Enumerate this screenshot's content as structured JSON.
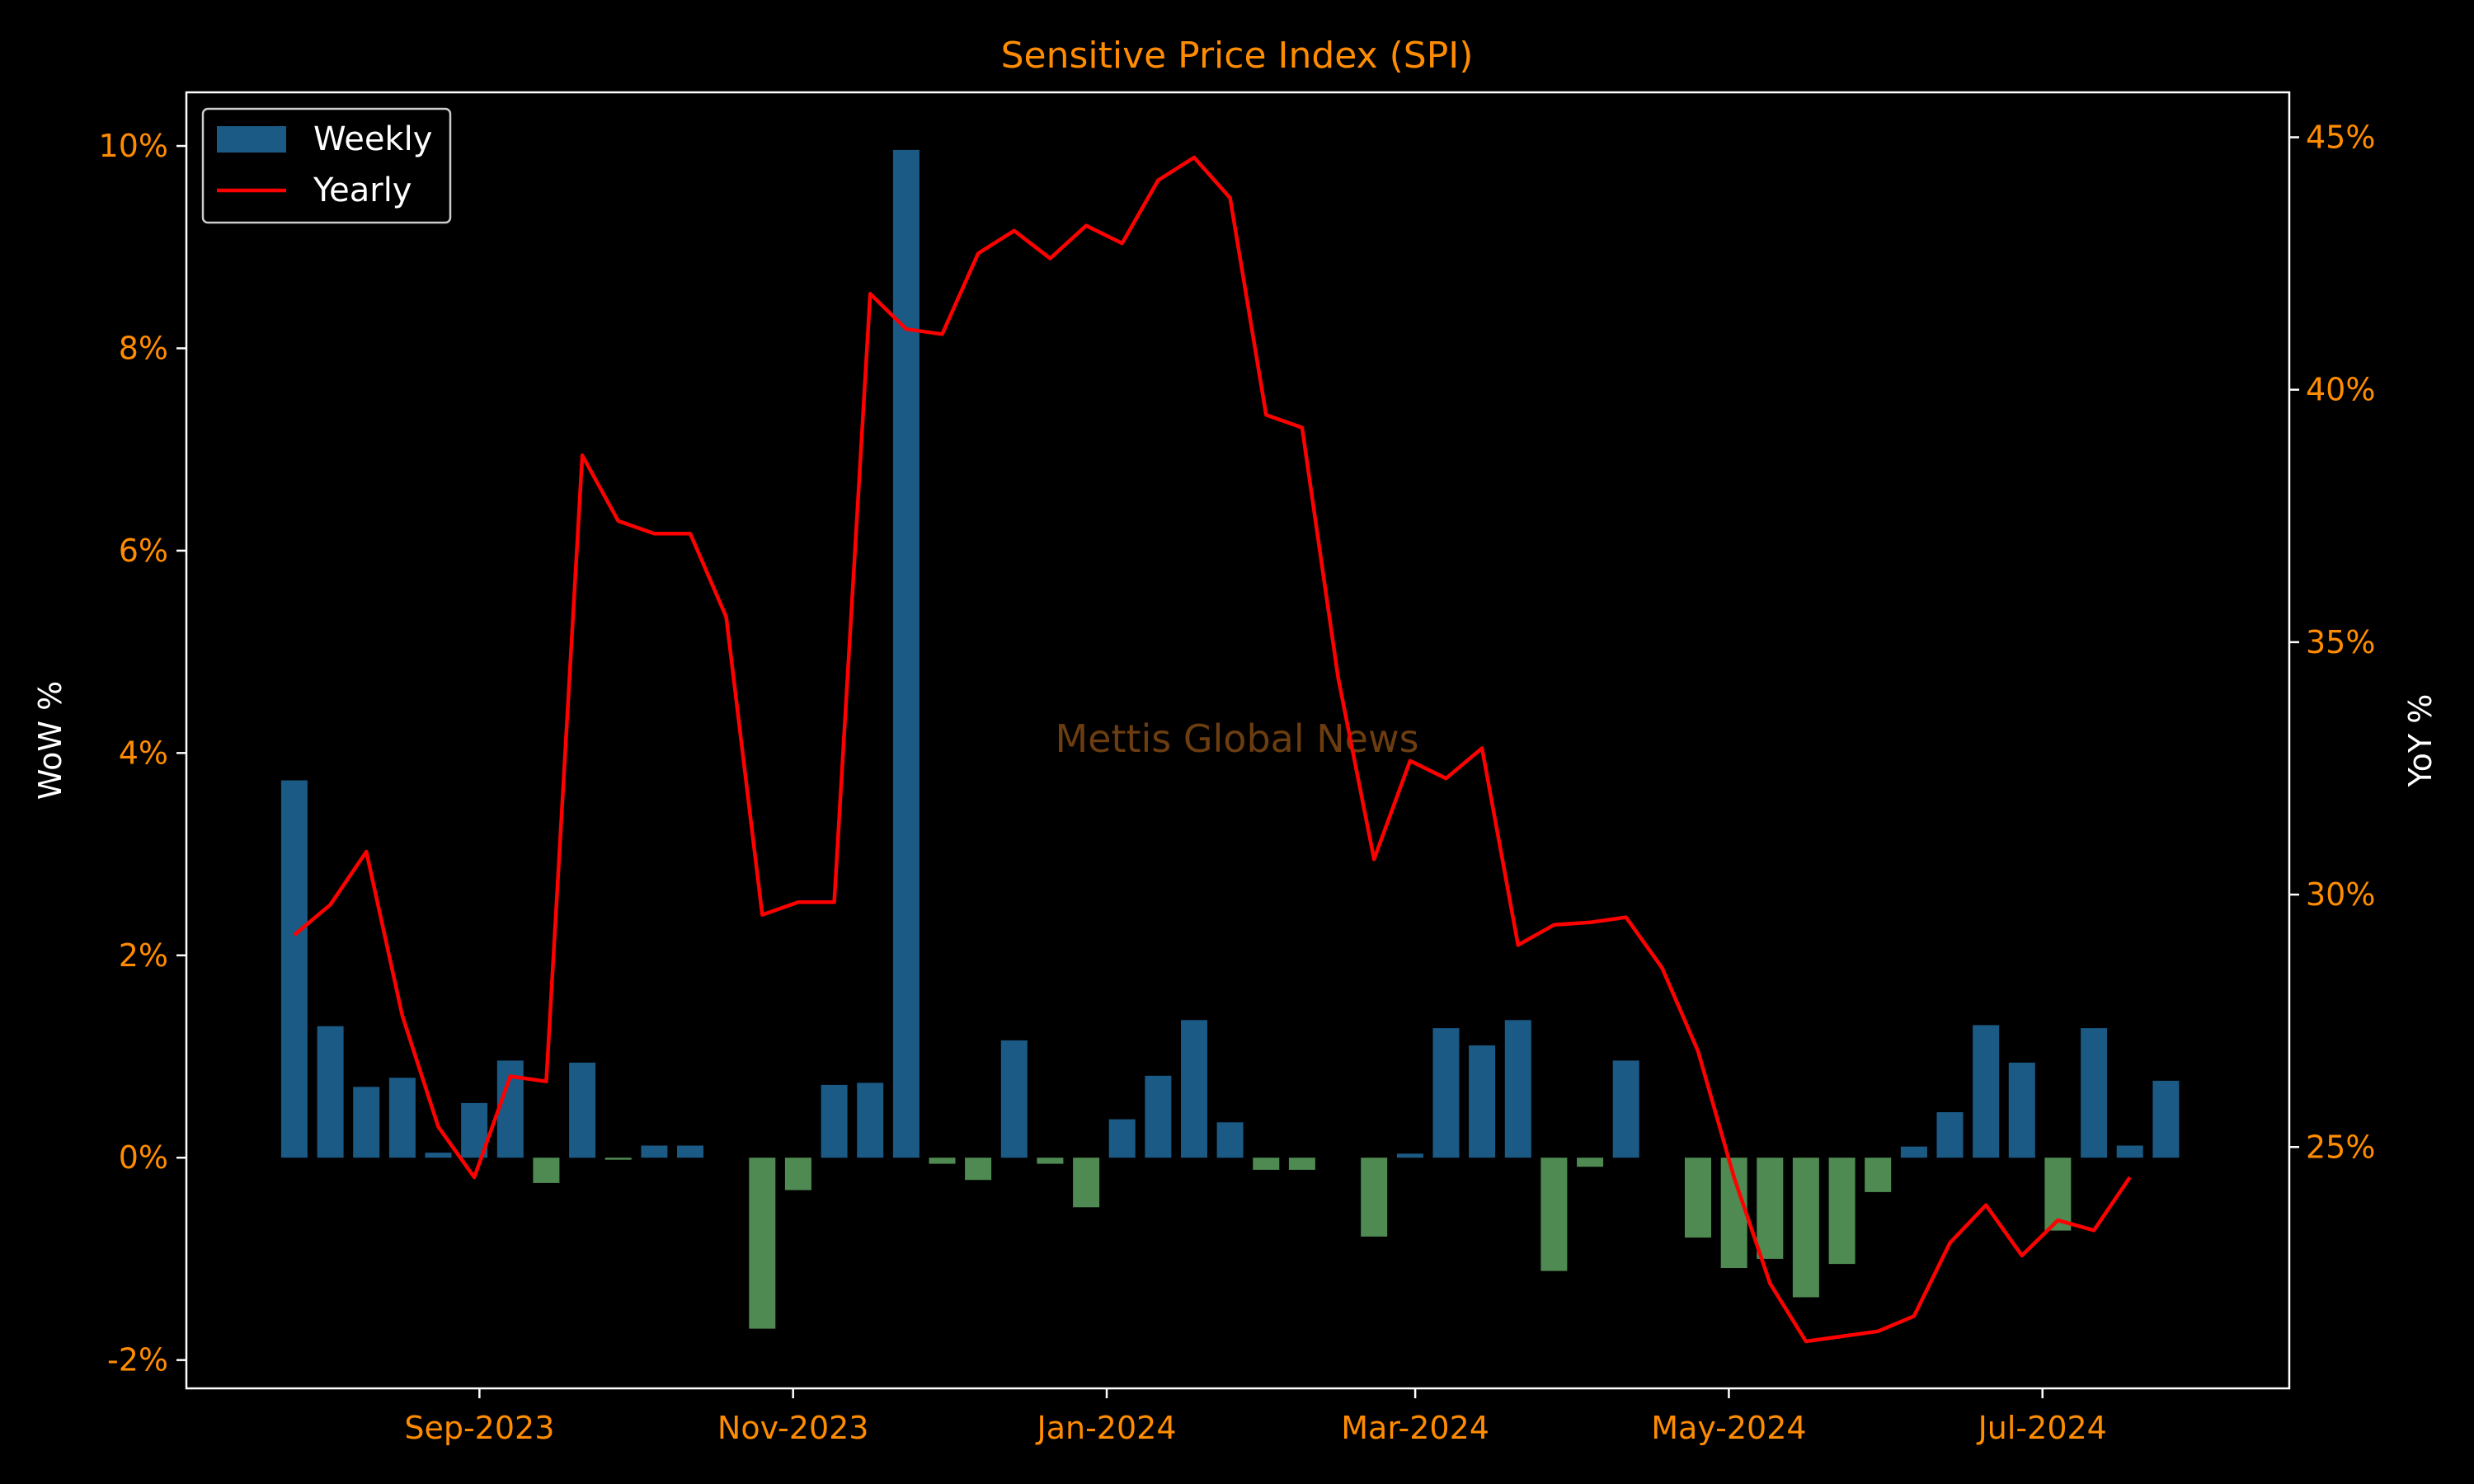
{
  "chart_data": {
    "type": "bar",
    "title": "Sensitive Price Index (SPI)",
    "ylabel": "WoW %",
    "y2label": "YoY %",
    "watermark": "Mettis Global News",
    "ylim": [
      -2.28,
      10.53
    ],
    "y2lim": [
      20.22,
      45.89
    ],
    "yticks": [
      "-2%",
      "0%",
      "2%",
      "4%",
      "6%",
      "8%",
      "10%"
    ],
    "y2ticks": [
      "25%",
      "30%",
      "35%",
      "40%",
      "45%"
    ],
    "xticks": [
      "Sep-2023",
      "Nov-2023",
      "Jan-2024",
      "Mar-2024",
      "May-2024",
      "Jul-2024"
    ],
    "xrange": [
      "2023-07-06",
      "2024-08-18"
    ],
    "legend_position": "top-left",
    "colors": {
      "background": "#000000",
      "axes": "#ffffff",
      "tick_labels": "#ff8c00",
      "title": "#ff8c00",
      "watermark": "#6b3d10",
      "positive_bar": "#1a5a85",
      "negative_bar": "#4f8a52",
      "yearly_line": "#ff0000"
    },
    "series": [
      {
        "name": "Weekly",
        "type": "bar",
        "axis": "left",
        "x": [
          "2023-07-27",
          "2023-08-03",
          "2023-08-10",
          "2023-08-17",
          "2023-08-24",
          "2023-08-31",
          "2023-09-07",
          "2023-09-14",
          "2023-09-21",
          "2023-09-28",
          "2023-10-05",
          "2023-10-12",
          "2023-10-19",
          "2023-10-26",
          "2023-11-02",
          "2023-11-09",
          "2023-11-16",
          "2023-11-23",
          "2023-11-30",
          "2023-12-07",
          "2023-12-14",
          "2023-12-21",
          "2023-12-28",
          "2024-01-04",
          "2024-01-11",
          "2024-01-18",
          "2024-01-25",
          "2024-02-01",
          "2024-02-08",
          "2024-02-15",
          "2024-02-22",
          "2024-02-29",
          "2024-03-07",
          "2024-03-14",
          "2024-03-21",
          "2024-03-28",
          "2024-04-04",
          "2024-04-11",
          "2024-04-18",
          "2024-04-25",
          "2024-05-02",
          "2024-05-09",
          "2024-05-16",
          "2024-05-23",
          "2024-05-30",
          "2024-06-06",
          "2024-06-13",
          "2024-06-20",
          "2024-06-27",
          "2024-07-04",
          "2024-07-11",
          "2024-07-18",
          "2024-07-25"
        ],
        "values": [
          3.73,
          1.3,
          0.7,
          0.79,
          0.05,
          0.54,
          0.96,
          -0.25,
          0.94,
          -0.02,
          0.12,
          0.12,
          null,
          -1.69,
          -0.32,
          0.72,
          0.74,
          9.96,
          -0.06,
          -0.22,
          1.16,
          -0.06,
          -0.49,
          0.38,
          0.81,
          1.36,
          0.35,
          -0.12,
          -0.12,
          null,
          -0.78,
          0.04,
          1.28,
          1.11,
          1.36,
          -1.12,
          -0.09,
          0.96,
          null,
          -0.79,
          -1.09,
          -1.0,
          -1.38,
          -1.05,
          -0.34,
          0.11,
          0.45,
          1.31,
          0.94,
          -0.72,
          1.28,
          0.12,
          0.76
        ]
      },
      {
        "name": "Yearly",
        "type": "line",
        "axis": "right",
        "x": [
          "2023-07-27",
          "2023-08-03",
          "2023-08-10",
          "2023-08-17",
          "2023-08-24",
          "2023-08-31",
          "2023-09-07",
          "2023-09-14",
          "2023-09-21",
          "2023-09-28",
          "2023-10-05",
          "2023-10-12",
          "2023-10-19",
          "2023-10-26",
          "2023-11-02",
          "2023-11-09",
          "2023-11-16",
          "2023-11-23",
          "2023-11-30",
          "2023-12-07",
          "2023-12-14",
          "2023-12-21",
          "2023-12-28",
          "2024-01-04",
          "2024-01-11",
          "2024-01-18",
          "2024-01-25",
          "2024-02-01",
          "2024-02-08",
          "2024-02-15",
          "2024-02-22",
          "2024-02-29",
          "2024-03-07",
          "2024-03-14",
          "2024-03-21",
          "2024-03-28",
          "2024-04-04",
          "2024-04-11",
          "2024-04-18",
          "2024-04-25",
          "2024-05-02",
          "2024-05-09",
          "2024-05-16",
          "2024-05-23",
          "2024-05-30",
          "2024-06-06",
          "2024-06-13",
          "2024-06-20",
          "2024-06-27",
          "2024-07-04",
          "2024-07-11",
          "2024-07-18",
          "2024-07-25"
        ],
        "values": [
          29.2,
          29.8,
          30.85,
          27.6,
          25.4,
          24.4,
          26.4,
          26.3,
          38.7,
          37.4,
          37.15,
          37.15,
          35.5,
          29.6,
          29.85,
          29.85,
          41.9,
          41.2,
          41.1,
          42.7,
          43.15,
          42.6,
          43.25,
          42.9,
          44.15,
          44.6,
          43.8,
          39.5,
          39.25,
          34.3,
          30.7,
          32.65,
          32.3,
          32.9,
          29.0,
          29.4,
          29.45,
          29.55,
          28.55,
          26.9,
          24.4,
          22.3,
          21.15,
          21.25,
          21.35,
          21.65,
          23.1,
          23.85,
          22.85,
          23.55,
          23.35,
          24.4,
          null
        ]
      }
    ]
  },
  "legend": {
    "items": [
      {
        "label": "Weekly",
        "color": "#1a5a85"
      },
      {
        "label": "Yearly",
        "color": "#ff0000"
      }
    ]
  }
}
